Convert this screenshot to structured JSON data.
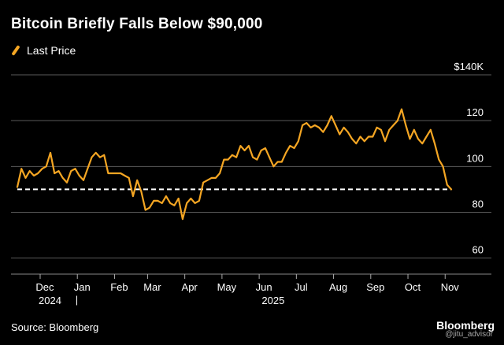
{
  "header": {
    "title": "Bitcoin Briefly Falls Below $90,000"
  },
  "legend": {
    "label": "Last Price",
    "color": "#f5a623"
  },
  "footer": {
    "source": "Source: Bloomberg",
    "brand": "Bloomberg",
    "watermark": "@jitu_advisor"
  },
  "chart_data": {
    "type": "line",
    "title": "Bitcoin Briefly Falls Below $90,000",
    "xlabel": "",
    "ylabel": "",
    "ylim": [
      53,
      140
    ],
    "y_ticks": [
      {
        "value": 140,
        "label": "$140K"
      },
      {
        "value": 120,
        "label": "120"
      },
      {
        "value": 100,
        "label": "100"
      },
      {
        "value": 80,
        "label": "80"
      },
      {
        "value": 60,
        "label": "60"
      }
    ],
    "x_ticks": [
      {
        "index": 4,
        "label": "Dec"
      },
      {
        "index": 13,
        "label": "Jan"
      },
      {
        "index": 22,
        "label": "Feb"
      },
      {
        "index": 30,
        "label": "Mar"
      },
      {
        "index": 39,
        "label": "Apr"
      },
      {
        "index": 48,
        "label": "May"
      },
      {
        "index": 57,
        "label": "Jun"
      },
      {
        "index": 66,
        "label": "Jul"
      },
      {
        "index": 75,
        "label": "Aug"
      },
      {
        "index": 84,
        "label": "Sep"
      },
      {
        "index": 93,
        "label": "Oct"
      },
      {
        "index": 102,
        "label": "Nov"
      }
    ],
    "year_labels": [
      {
        "index": 6,
        "label": "2024",
        "separator": "|"
      },
      {
        "index": 60,
        "label": "2025"
      }
    ],
    "reference_line": {
      "value": 90,
      "style": "dashed",
      "color": "#ffffff"
    },
    "series": [
      {
        "name": "Last Price",
        "color": "#f5a623",
        "values": [
          91,
          99,
          95,
          98,
          96,
          97,
          99,
          100,
          106,
          97,
          98,
          95,
          93,
          98,
          99,
          96,
          94,
          99,
          104,
          106,
          104,
          105,
          97,
          97,
          97,
          97,
          96,
          95,
          87,
          94,
          89,
          81,
          82,
          85,
          85,
          84,
          87,
          84,
          83,
          86,
          77,
          84,
          86,
          84,
          85,
          93,
          94,
          95,
          95,
          97,
          103,
          103,
          105,
          104,
          109,
          107,
          109,
          104,
          103,
          107,
          108,
          104,
          100,
          102,
          102,
          106,
          109,
          108,
          111,
          118,
          119,
          117,
          118,
          117,
          115,
          118,
          122,
          118,
          114,
          117,
          115,
          112,
          110,
          113,
          111,
          113,
          113,
          117,
          116,
          111,
          116,
          118,
          120,
          125,
          118,
          112,
          116,
          112,
          110,
          113,
          116,
          110,
          103,
          100,
          92,
          90
        ]
      }
    ]
  }
}
